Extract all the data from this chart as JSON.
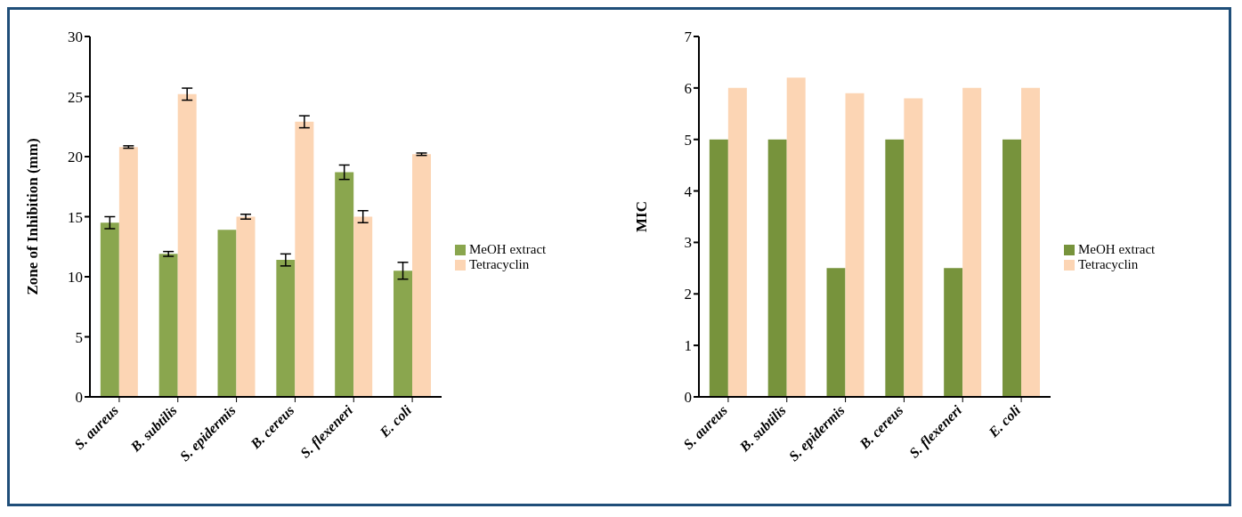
{
  "chart_data": [
    {
      "type": "bar",
      "ylabel": "Zone of Inhibition (mm)",
      "categories": [
        "S. aureus",
        "B. subtilis",
        "S. epidermis",
        "B. cereus",
        "S. flexeneri",
        "E. coli"
      ],
      "ylim": [
        0,
        30
      ],
      "yticks": [
        0,
        5,
        10,
        15,
        20,
        25,
        30
      ],
      "grid": false,
      "legend": "right",
      "series": [
        {
          "name": "MeOH extract",
          "color": "#8aa64e",
          "values": [
            14.5,
            11.9,
            13.9,
            11.4,
            18.7,
            10.5
          ],
          "errors": [
            0.5,
            0.2,
            0,
            0.5,
            0.6,
            0.7
          ]
        },
        {
          "name": "Tetracyclin",
          "color": "#fcd5b4",
          "values": [
            20.8,
            25.2,
            15,
            22.9,
            15,
            20.2
          ],
          "errors": [
            0.1,
            0.5,
            0.2,
            0.5,
            0.5,
            0.1
          ]
        }
      ]
    },
    {
      "type": "bar",
      "ylabel": "MIC",
      "categories": [
        "S. aureus",
        "B. subtilis",
        "S. epidermis",
        "B. cereus",
        "S. flexeneri",
        "E. coli"
      ],
      "ylim": [
        0,
        7
      ],
      "yticks": [
        0,
        1,
        2,
        3,
        4,
        5,
        6,
        7
      ],
      "grid": false,
      "legend": "right",
      "series": [
        {
          "name": "MeOH extract",
          "color": "#77933c",
          "values": [
            5,
            5,
            2.5,
            5,
            2.5,
            5
          ]
        },
        {
          "name": "Tetracyclin",
          "color": "#fcd5b4",
          "values": [
            6,
            6.2,
            5.9,
            5.8,
            6,
            6
          ]
        }
      ]
    }
  ]
}
